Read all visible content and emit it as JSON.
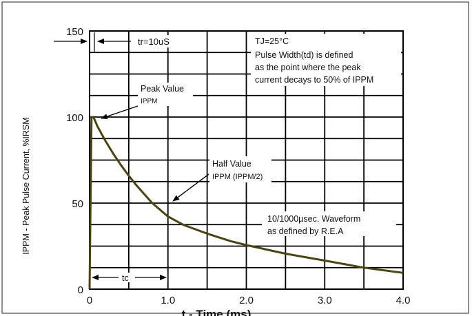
{
  "chart_data": {
    "type": "line",
    "title": "",
    "xlabel": "t - Time (ms)",
    "ylabel": "IPPM - Peak Pulse Current, %IRSM",
    "xlim": [
      0,
      4.0
    ],
    "ylim": [
      0,
      150
    ],
    "x_ticks": [
      {
        "value": 0,
        "label": "0"
      },
      {
        "value": 1.0,
        "label": "1.0"
      },
      {
        "value": 2.0,
        "label": "2.0"
      },
      {
        "value": 3.0,
        "label": "3.0"
      },
      {
        "value": 4.0,
        "label": "4.0"
      }
    ],
    "y_ticks": [
      {
        "value": 0,
        "label": "0"
      },
      {
        "value": 50,
        "label": "50"
      },
      {
        "value": 100,
        "label": "100"
      },
      {
        "value": 150,
        "label": "150"
      }
    ],
    "grid": true,
    "series": [
      {
        "color": "#4a4410",
        "x": [
          0,
          0.025,
          0.05,
          0.1,
          0.2,
          0.3,
          0.4,
          0.5,
          0.6,
          0.8,
          1.0,
          1.2,
          1.5,
          1.8,
          2.0,
          2.5,
          3.0,
          3.5,
          4.0
        ],
        "y": [
          0,
          100,
          100,
          94.6,
          86.3,
          78.9,
          72.1,
          65.9,
          60.2,
          50.0,
          42.2,
          37.3,
          32.3,
          27.9,
          25.6,
          20.6,
          16.6,
          12.5,
          9.5
        ]
      }
    ],
    "annotations": {
      "tr": "tr=10uS",
      "tj_line": "TJ=25°C",
      "pulse_width_lines": [
        "Pulse Width(td) is defined",
        "as the point where the peak",
        "current decays to 50% of IPPM"
      ],
      "peak_value_line1": "Peak Value",
      "peak_value_line2": "IPPM",
      "half_value_line1": "Half Value",
      "half_value_line2": "IPPM (IPPM/2)",
      "waveform_lines": [
        "10/1000µsec. Waveform",
        "as defined by R.E.A"
      ],
      "tc": "tc"
    }
  }
}
